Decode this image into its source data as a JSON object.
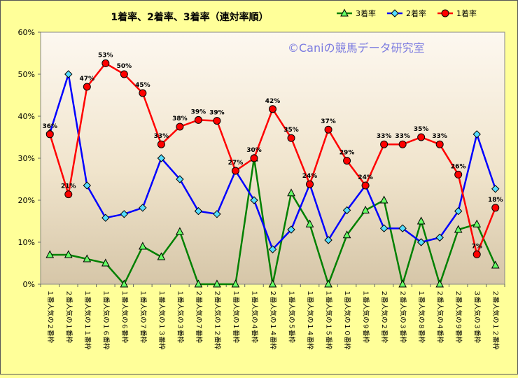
{
  "chart_data": {
    "type": "line",
    "title": "1着率、2着率、3着率（連対率順）",
    "watermark": "©Caniの競馬データ研究室",
    "ylim": [
      0,
      60
    ],
    "yticks": [
      "0%",
      "10%",
      "20%",
      "30%",
      "40%",
      "50%",
      "60%"
    ],
    "categories": [
      "１番人気の２番枠",
      "２番人気の１番枠",
      "１番人気の１１番枠",
      "１番人気の１６番枠",
      "１番人気の６番枠",
      "１番人気の７番枠",
      "１番人気の１３番枠",
      "１番人気の３番枠",
      "２番人気の７番枠",
      "２番人気の１２番枠",
      "１番人気の１番枠",
      "１番人気の４番枠",
      "２番人気の１４番枠",
      "１番人気の５番枠",
      "１番人気の１４番枠",
      "１番人気の１５番枠",
      "１番人気の１０番枠",
      "１番人気の９番枠",
      "２番人気の２番枠",
      "２番人気の３番枠",
      "１番人気の８番枠",
      "２番人気の４番枠",
      "２番人気の９番枠",
      "３番人気の３番枠",
      "２番人気の１２番枠"
    ],
    "series": [
      {
        "name": "3着率",
        "color": "#008000",
        "marker": "triangle",
        "values": [
          7,
          7,
          6,
          5,
          0,
          9,
          6.5,
          12.5,
          0,
          0,
          0,
          30,
          0,
          21.7,
          14.3,
          0,
          11.7,
          17.6,
          20,
          0,
          15,
          0,
          13,
          14.3,
          4.5
        ]
      },
      {
        "name": "2着率",
        "color": "#0000ff",
        "marker": "diamond",
        "values": [
          36,
          50,
          23.5,
          15.8,
          16.7,
          18.2,
          30,
          25,
          17.4,
          16.7,
          27,
          20,
          8.3,
          13,
          23.8,
          10.5,
          17.6,
          23.5,
          13.3,
          13.3,
          10,
          11.1,
          17.4,
          35.7,
          22.7
        ]
      },
      {
        "name": "1着率",
        "color": "#ff0000",
        "marker": "circle",
        "values": [
          35.7,
          21.4,
          47,
          52.6,
          50,
          45.5,
          33.3,
          37.5,
          39.1,
          38.9,
          27,
          30,
          41.7,
          34.8,
          23.8,
          36.8,
          29.4,
          23.5,
          33.3,
          33.3,
          35,
          33.3,
          26.1,
          7.1,
          18.2
        ],
        "labels": [
          "36%",
          "21%",
          "47%",
          "53%",
          "50%",
          "45%",
          "33%",
          "38%",
          "39%",
          "39%",
          "27%",
          "30%",
          "42%",
          "35%",
          "24%",
          "37%",
          "29%",
          "24%",
          "33%",
          "33%",
          "35%",
          "33%",
          "26%",
          "7%",
          "18%"
        ]
      }
    ],
    "legend_position": "top-right",
    "grid": false
  }
}
